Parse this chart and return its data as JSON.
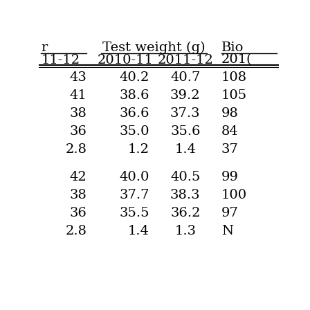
{
  "col1_top": "r",
  "col1_bot": "11-12",
  "col2_top": "Test weight (g)",
  "col2_sub1": "2010-11",
  "col2_sub2": "2011-12",
  "col3_top": "Bio",
  "col3_sub1": "201(",
  "rows_group1": [
    [
      "43",
      "40.2",
      "40.7",
      "108"
    ],
    [
      "41",
      "38.6",
      "39.2",
      "105"
    ],
    [
      "38",
      "36.6",
      "37.3",
      "98"
    ],
    [
      "36",
      "35.0",
      "35.6",
      "84"
    ],
    [
      "2.8",
      "1.2",
      "1.4",
      "37"
    ]
  ],
  "rows_group2": [
    [
      "42",
      "40.0",
      "40.5",
      "99"
    ],
    [
      "38",
      "37.7",
      "38.3",
      "100"
    ],
    [
      "36",
      "35.5",
      "36.2",
      "97"
    ],
    [
      "2.8",
      "1.4",
      "1.3",
      "N"
    ]
  ],
  "font_size": 14,
  "bg_color": "#ffffff"
}
